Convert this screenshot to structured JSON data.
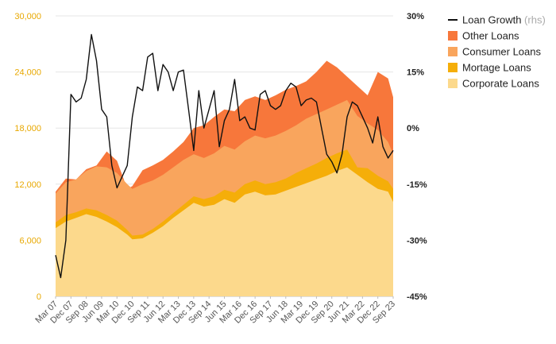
{
  "chart_data": {
    "type": "area",
    "stacked": true,
    "x_ticks": [
      "Mar 07",
      "Dec 07",
      "Sep 08",
      "Jun 09",
      "Mar 10",
      "Dec 10",
      "Sep 11",
      "Jun 12",
      "Mar 13",
      "Dec 13",
      "Sep 14",
      "Jun 15",
      "Mar 16",
      "Dec 16",
      "Sep 17",
      "Jun 18",
      "Mar 19",
      "Dec 19",
      "Sep 20",
      "Jun 21",
      "Mar 22",
      "Dec 22",
      "Sep 23"
    ],
    "y_left": {
      "ticks": [
        "0",
        "6,000",
        "12,000",
        "18,000",
        "24,000",
        "30,000"
      ],
      "values": [
        0,
        6000,
        12000,
        18000,
        24000,
        30000
      ],
      "ylim": [
        0,
        30000
      ]
    },
    "y_right": {
      "ticks": [
        "-45%",
        "-30%",
        "-15%",
        "0%",
        "15%",
        "30%"
      ],
      "values": [
        -45,
        -30,
        -15,
        0,
        15,
        30
      ],
      "ylim": [
        -45,
        30
      ]
    },
    "legend_position": "top-right",
    "legend": [
      {
        "key": "loan_growth",
        "label": "Loan Growth",
        "sub": " (rhs)",
        "kind": "line",
        "color": "#111111"
      },
      {
        "key": "other",
        "label": "Other Loans",
        "kind": "area",
        "color": "#f7773b"
      },
      {
        "key": "consumer",
        "label": "Consumer Loans",
        "kind": "area",
        "color": "#f9a55d"
      },
      {
        "key": "mortgage",
        "label": "Mortage Loans",
        "kind": "area",
        "color": "#f5ae09"
      },
      {
        "key": "corporate",
        "label": "Corporate Loans",
        "kind": "area",
        "color": "#fcd98c"
      }
    ],
    "x_index_range": [
      0,
      66
    ],
    "series": [
      {
        "name": "Corporate Loans",
        "key": "corporate",
        "axis": "left",
        "points": [
          [
            0,
            7300
          ],
          [
            2,
            8000
          ],
          [
            4,
            8400
          ],
          [
            6,
            8800
          ],
          [
            8,
            8500
          ],
          [
            10,
            8000
          ],
          [
            12,
            7400
          ],
          [
            14,
            6600
          ],
          [
            15,
            6100
          ],
          [
            17,
            6200
          ],
          [
            19,
            6800
          ],
          [
            21,
            7500
          ],
          [
            23,
            8400
          ],
          [
            25,
            9200
          ],
          [
            27,
            10000
          ],
          [
            29,
            9600
          ],
          [
            31,
            9800
          ],
          [
            33,
            10400
          ],
          [
            35,
            10000
          ],
          [
            37,
            10900
          ],
          [
            39,
            11200
          ],
          [
            41,
            10800
          ],
          [
            43,
            10900
          ],
          [
            45,
            11300
          ],
          [
            47,
            11700
          ],
          [
            49,
            12100
          ],
          [
            51,
            12500
          ],
          [
            53,
            12900
          ],
          [
            55,
            13400
          ],
          [
            57,
            13800
          ],
          [
            59,
            13000
          ],
          [
            61,
            12200
          ],
          [
            63,
            11500
          ],
          [
            65,
            11200
          ],
          [
            66,
            10100
          ]
        ]
      },
      {
        "name": "Mortage Loans",
        "key": "mortgage",
        "axis": "left",
        "points": [
          [
            0,
            7900
          ],
          [
            2,
            8700
          ],
          [
            4,
            9000
          ],
          [
            6,
            9400
          ],
          [
            8,
            9200
          ],
          [
            10,
            8700
          ],
          [
            12,
            8100
          ],
          [
            14,
            7100
          ],
          [
            15,
            6500
          ],
          [
            17,
            6600
          ],
          [
            19,
            7200
          ],
          [
            21,
            8000
          ],
          [
            23,
            8900
          ],
          [
            25,
            9800
          ],
          [
            27,
            10700
          ],
          [
            29,
            10400
          ],
          [
            31,
            10700
          ],
          [
            33,
            11400
          ],
          [
            35,
            11100
          ],
          [
            37,
            12000
          ],
          [
            39,
            12400
          ],
          [
            41,
            12000
          ],
          [
            43,
            12200
          ],
          [
            45,
            12600
          ],
          [
            47,
            13200
          ],
          [
            49,
            13700
          ],
          [
            51,
            14200
          ],
          [
            53,
            14800
          ],
          [
            55,
            15300
          ],
          [
            57,
            15700
          ],
          [
            59,
            13800
          ],
          [
            61,
            13700
          ],
          [
            63,
            12900
          ],
          [
            65,
            12300
          ],
          [
            66,
            11500
          ]
        ]
      },
      {
        "name": "Consumer Loans",
        "key": "consumer",
        "axis": "left",
        "points": [
          [
            0,
            11000
          ],
          [
            2,
            12200
          ],
          [
            4,
            12500
          ],
          [
            6,
            13400
          ],
          [
            8,
            13900
          ],
          [
            10,
            13800
          ],
          [
            12,
            13200
          ],
          [
            14,
            12000
          ],
          [
            15,
            11500
          ],
          [
            17,
            12000
          ],
          [
            19,
            12400
          ],
          [
            21,
            13000
          ],
          [
            23,
            13800
          ],
          [
            25,
            14600
          ],
          [
            27,
            15200
          ],
          [
            29,
            14800
          ],
          [
            31,
            15300
          ],
          [
            33,
            16100
          ],
          [
            35,
            15700
          ],
          [
            37,
            16600
          ],
          [
            39,
            17200
          ],
          [
            41,
            16900
          ],
          [
            43,
            17200
          ],
          [
            45,
            17700
          ],
          [
            47,
            18300
          ],
          [
            49,
            19000
          ],
          [
            51,
            19500
          ],
          [
            53,
            20000
          ],
          [
            55,
            20500
          ],
          [
            57,
            21000
          ],
          [
            59,
            19300
          ],
          [
            61,
            18500
          ],
          [
            63,
            17800
          ],
          [
            65,
            16500
          ],
          [
            66,
            15200
          ]
        ]
      },
      {
        "name": "Other Loans",
        "key": "other",
        "axis": "left",
        "points": [
          [
            0,
            11200
          ],
          [
            2,
            12600
          ],
          [
            4,
            12500
          ],
          [
            6,
            13600
          ],
          [
            8,
            14000
          ],
          [
            10,
            15500
          ],
          [
            12,
            14500
          ],
          [
            14,
            11500
          ],
          [
            15,
            11800
          ],
          [
            17,
            13500
          ],
          [
            19,
            14000
          ],
          [
            21,
            14600
          ],
          [
            23,
            15500
          ],
          [
            25,
            16500
          ],
          [
            27,
            18000
          ],
          [
            29,
            18300
          ],
          [
            31,
            19200
          ],
          [
            33,
            20000
          ],
          [
            35,
            19800
          ],
          [
            37,
            21000
          ],
          [
            39,
            21400
          ],
          [
            41,
            21000
          ],
          [
            43,
            21500
          ],
          [
            45,
            22100
          ],
          [
            47,
            22500
          ],
          [
            49,
            23000
          ],
          [
            51,
            24000
          ],
          [
            53,
            25200
          ],
          [
            55,
            24500
          ],
          [
            57,
            23500
          ],
          [
            59,
            22500
          ],
          [
            61,
            21500
          ],
          [
            63,
            24000
          ],
          [
            65,
            23300
          ],
          [
            66,
            21300
          ]
        ]
      },
      {
        "name": "Loan Growth",
        "key": "loan_growth",
        "axis": "right",
        "unit": "%",
        "points": [
          [
            0,
            -34
          ],
          [
            1,
            -40
          ],
          [
            2,
            -30
          ],
          [
            3,
            9
          ],
          [
            4,
            7
          ],
          [
            5,
            8
          ],
          [
            6,
            13
          ],
          [
            7,
            25
          ],
          [
            8,
            18
          ],
          [
            9,
            5
          ],
          [
            10,
            3
          ],
          [
            11,
            -10
          ],
          [
            12,
            -16
          ],
          [
            13,
            -13
          ],
          [
            14,
            -10
          ],
          [
            15,
            3
          ],
          [
            16,
            11
          ],
          [
            17,
            10
          ],
          [
            18,
            19
          ],
          [
            19,
            20
          ],
          [
            20,
            10
          ],
          [
            21,
            17
          ],
          [
            22,
            15
          ],
          [
            23,
            10
          ],
          [
            24,
            15
          ],
          [
            25,
            15.5
          ],
          [
            26,
            5
          ],
          [
            27,
            -6
          ],
          [
            28,
            10
          ],
          [
            29,
            0
          ],
          [
            30,
            5
          ],
          [
            31,
            10
          ],
          [
            32,
            -5
          ],
          [
            33,
            2
          ],
          [
            34,
            5
          ],
          [
            35,
            13
          ],
          [
            36,
            2
          ],
          [
            37,
            3
          ],
          [
            38,
            0
          ],
          [
            39,
            -0.5
          ],
          [
            40,
            9
          ],
          [
            41,
            10
          ],
          [
            42,
            6
          ],
          [
            43,
            5
          ],
          [
            44,
            6
          ],
          [
            45,
            10
          ],
          [
            46,
            12
          ],
          [
            47,
            11
          ],
          [
            48,
            6
          ],
          [
            49,
            7.5
          ],
          [
            50,
            8
          ],
          [
            51,
            7
          ],
          [
            52,
            0
          ],
          [
            53,
            -7
          ],
          [
            54,
            -9
          ],
          [
            55,
            -12
          ],
          [
            56,
            -7
          ],
          [
            57,
            3
          ],
          [
            58,
            7
          ],
          [
            59,
            6
          ],
          [
            60,
            3
          ],
          [
            61,
            0
          ],
          [
            62,
            -4
          ],
          [
            63,
            3
          ],
          [
            64,
            -5
          ],
          [
            65,
            -8
          ],
          [
            66,
            -6
          ]
        ]
      }
    ]
  }
}
